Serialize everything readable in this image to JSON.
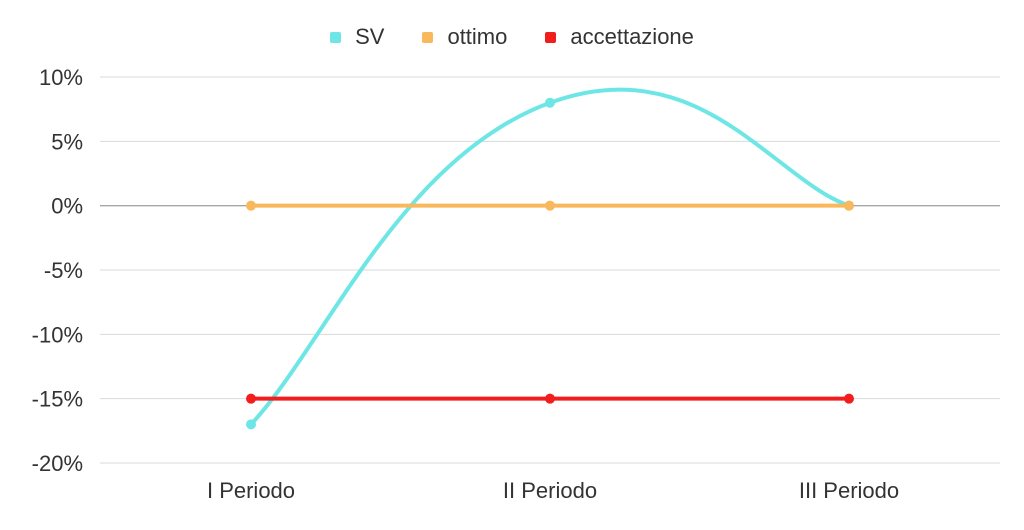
{
  "chart_data": {
    "type": "line",
    "categories": [
      "I Periodo",
      "II Periodo",
      "III Periodo"
    ],
    "series": [
      {
        "name": "SV",
        "values": [
          -17,
          8,
          0
        ],
        "color": "#6ee6e6",
        "smooth": true
      },
      {
        "name": "ottimo",
        "values": [
          0,
          0,
          0
        ],
        "color": "#f9b85c",
        "smooth": false
      },
      {
        "name": "accettazione",
        "values": [
          -15,
          -15,
          -15
        ],
        "color": "#f21d1d",
        "smooth": false
      }
    ],
    "yticks": [
      "10%",
      "5%",
      "0%",
      "-5%",
      "-10%",
      "-15%",
      "-20%"
    ],
    "ytick_values": [
      10,
      5,
      0,
      -5,
      -10,
      -15,
      -20
    ],
    "ylim": [
      -20,
      10
    ],
    "grid": true,
    "legend_position": "top-center",
    "title": "",
    "xlabel": "",
    "ylabel": ""
  }
}
